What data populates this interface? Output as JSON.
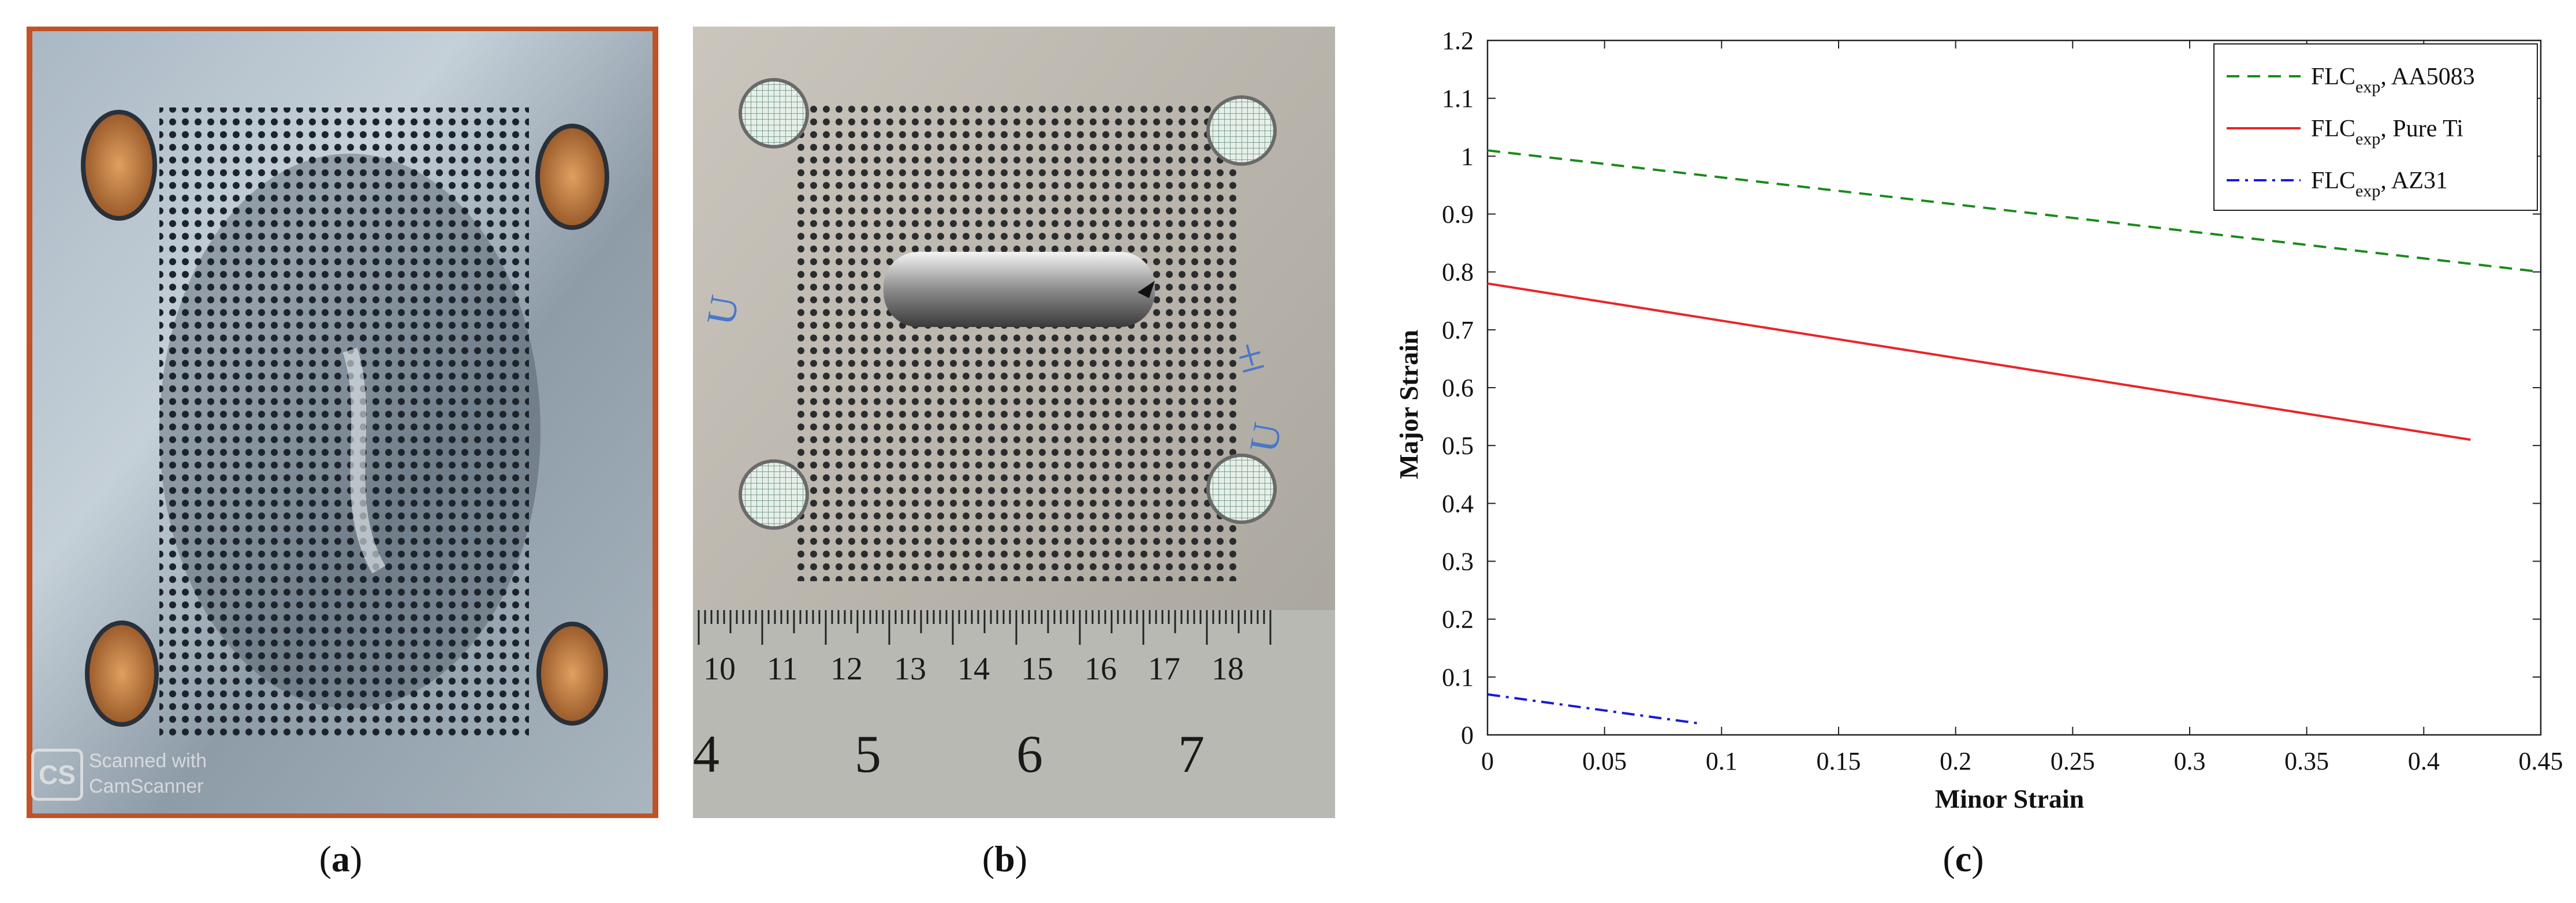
{
  "panels": {
    "a": {
      "label": "a",
      "watermark_logo": "CS",
      "watermark_line1": "Scanned with",
      "watermark_line2": "CamScanner"
    },
    "b": {
      "label": "b",
      "ruler_cm": [
        "10",
        "11",
        "12",
        "13",
        "14",
        "15",
        "16",
        "17",
        "18"
      ],
      "ruler_in": [
        "4",
        "5",
        "6",
        "7"
      ],
      "pen_marks": [
        "U",
        "±",
        "U"
      ]
    },
    "c": {
      "label": "c"
    }
  },
  "colors": {
    "aa5083": "#1a8a1a",
    "pure_ti": "#e8262a",
    "az31": "#1a1ad6"
  },
  "chart_data": {
    "type": "line",
    "title": "",
    "xlabel": "Minor Strain",
    "ylabel": "Major Strain",
    "xlim": [
      0,
      0.45
    ],
    "ylim": [
      0,
      1.2
    ],
    "xticks": [
      0,
      0.05,
      0.1,
      0.15,
      0.2,
      0.25,
      0.3,
      0.35,
      0.4,
      0.45
    ],
    "yticks": [
      0,
      0.1,
      0.2,
      0.3,
      0.4,
      0.5,
      0.6,
      0.7,
      0.8,
      0.9,
      1,
      1.1,
      1.2
    ],
    "xtick_labels": [
      "0",
      "0.05",
      "0.1",
      "0.15",
      "0.2",
      "0.25",
      "0.3",
      "0.35",
      "0.4",
      "0.45"
    ],
    "ytick_labels": [
      "0",
      "0.1",
      "0.2",
      "0.3",
      "0.4",
      "0.5",
      "0.6",
      "0.7",
      "0.8",
      "0.9",
      "1",
      "1.1",
      "1.2"
    ],
    "grid": false,
    "legend_position": "top-right",
    "series": [
      {
        "name": "FLC_exp, AA5083",
        "legend_main": "FLC",
        "legend_sub": "exp",
        "legend_suffix": ", AA5083",
        "style": "dashed",
        "color": "#1a8a1a",
        "x": [
          0,
          0.45
        ],
        "y": [
          1.01,
          0.8
        ]
      },
      {
        "name": "FLC_exp, Pure Ti",
        "legend_main": "FLC",
        "legend_sub": "exp",
        "legend_suffix": ", Pure Ti",
        "style": "solid",
        "color": "#e8262a",
        "x": [
          0,
          0.42
        ],
        "y": [
          0.78,
          0.51
        ]
      },
      {
        "name": "FLC_exp, AZ31",
        "legend_main": "FLC",
        "legend_sub": "exp",
        "legend_suffix": ", AZ31",
        "style": "dashdot",
        "color": "#1a1ad6",
        "x": [
          0,
          0.09
        ],
        "y": [
          0.07,
          0.02
        ]
      }
    ]
  }
}
